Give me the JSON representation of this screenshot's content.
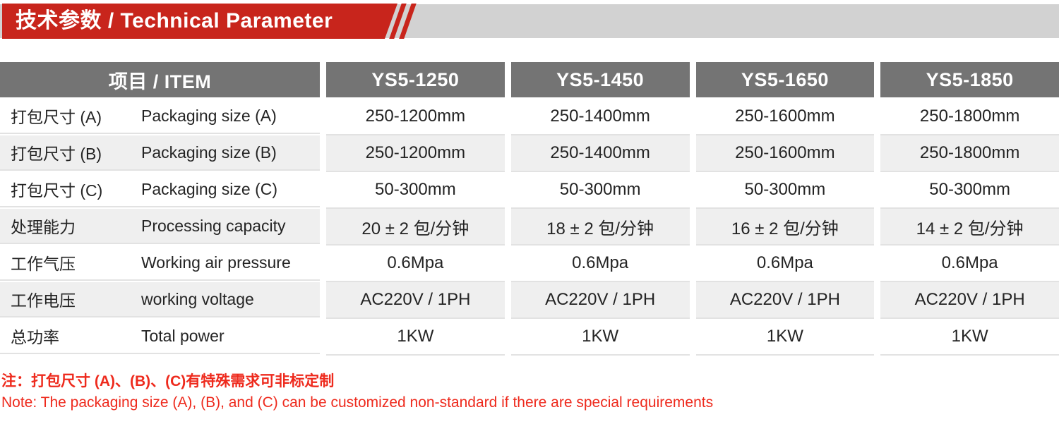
{
  "header": {
    "title": "技术参数 / Technical Parameter",
    "accent_red": "#c8251c",
    "bar_gray": "#d2d2d2"
  },
  "table": {
    "item_header": "项目 / ITEM",
    "columns": [
      "YS5-1250",
      "YS5-1450",
      "YS5-1650",
      "YS5-1850"
    ],
    "header_gray": "#747474",
    "zebra_gray": "#efefef",
    "rows": [
      {
        "zh": "打包尺寸 (A)",
        "en": "Packaging size (A)",
        "values": [
          "250-1200mm",
          "250-1400mm",
          "250-1600mm",
          "250-1800mm"
        ]
      },
      {
        "zh": "打包尺寸 (B)",
        "en": "Packaging size (B)",
        "values": [
          "250-1200mm",
          "250-1400mm",
          "250-1600mm",
          "250-1800mm"
        ]
      },
      {
        "zh": "打包尺寸 (C)",
        "en": "Packaging size (C)",
        "values": [
          "50-300mm",
          "50-300mm",
          "50-300mm",
          "50-300mm"
        ]
      },
      {
        "zh": "处理能力",
        "en": "Processing capacity",
        "values": [
          "20 ± 2 包/分钟",
          "18 ± 2 包/分钟",
          "16 ± 2 包/分钟",
          "14 ± 2 包/分钟"
        ]
      },
      {
        "zh": "工作气压",
        "en": "Working air pressure",
        "values": [
          "0.6Mpa",
          "0.6Mpa",
          "0.6Mpa",
          "0.6Mpa"
        ]
      },
      {
        "zh": "工作电压",
        "en": "working voltage",
        "values": [
          "AC220V / 1PH",
          "AC220V / 1PH",
          "AC220V / 1PH",
          "AC220V / 1PH"
        ]
      },
      {
        "zh": "总功率",
        "en": "Total power",
        "values": [
          "1KW",
          "1KW",
          "1KW",
          "1KW"
        ]
      }
    ]
  },
  "notes": {
    "line1": "注：打包尺寸 (A)、(B)、(C)有特殊需求可非标定制",
    "line2": "Note: The packaging size (A), (B), and (C) can be customized non-standard if there are special requirements",
    "color": "#ee2a1d"
  }
}
